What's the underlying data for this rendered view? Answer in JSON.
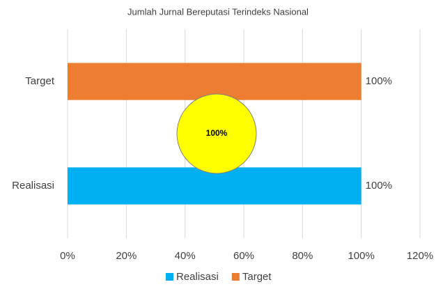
{
  "chart_data": {
    "type": "hbar",
    "title": "Jumlah Jurnal Bereputasi Terindeks Nasional",
    "categories": [
      "Realisasi",
      "Target"
    ],
    "series": [
      {
        "name": "Realisasi",
        "color": "#00b0f0",
        "values": [
          100,
          null
        ],
        "value_labels": [
          "100%",
          null
        ]
      },
      {
        "name": "Target",
        "color": "#ed7d31",
        "values": [
          null,
          100
        ],
        "value_labels": [
          null,
          "100%"
        ]
      }
    ],
    "xlim": [
      0,
      120
    ],
    "xticks": [
      {
        "value": 0,
        "label": "0%"
      },
      {
        "value": 20,
        "label": "20%"
      },
      {
        "value": 40,
        "label": "40%"
      },
      {
        "value": 60,
        "label": "60%"
      },
      {
        "value": 80,
        "label": "80%"
      },
      {
        "value": 100,
        "label": "100%"
      },
      {
        "value": 120,
        "label": "120%"
      }
    ],
    "grid": true,
    "legend": "bottom",
    "annotation": "100%"
  }
}
